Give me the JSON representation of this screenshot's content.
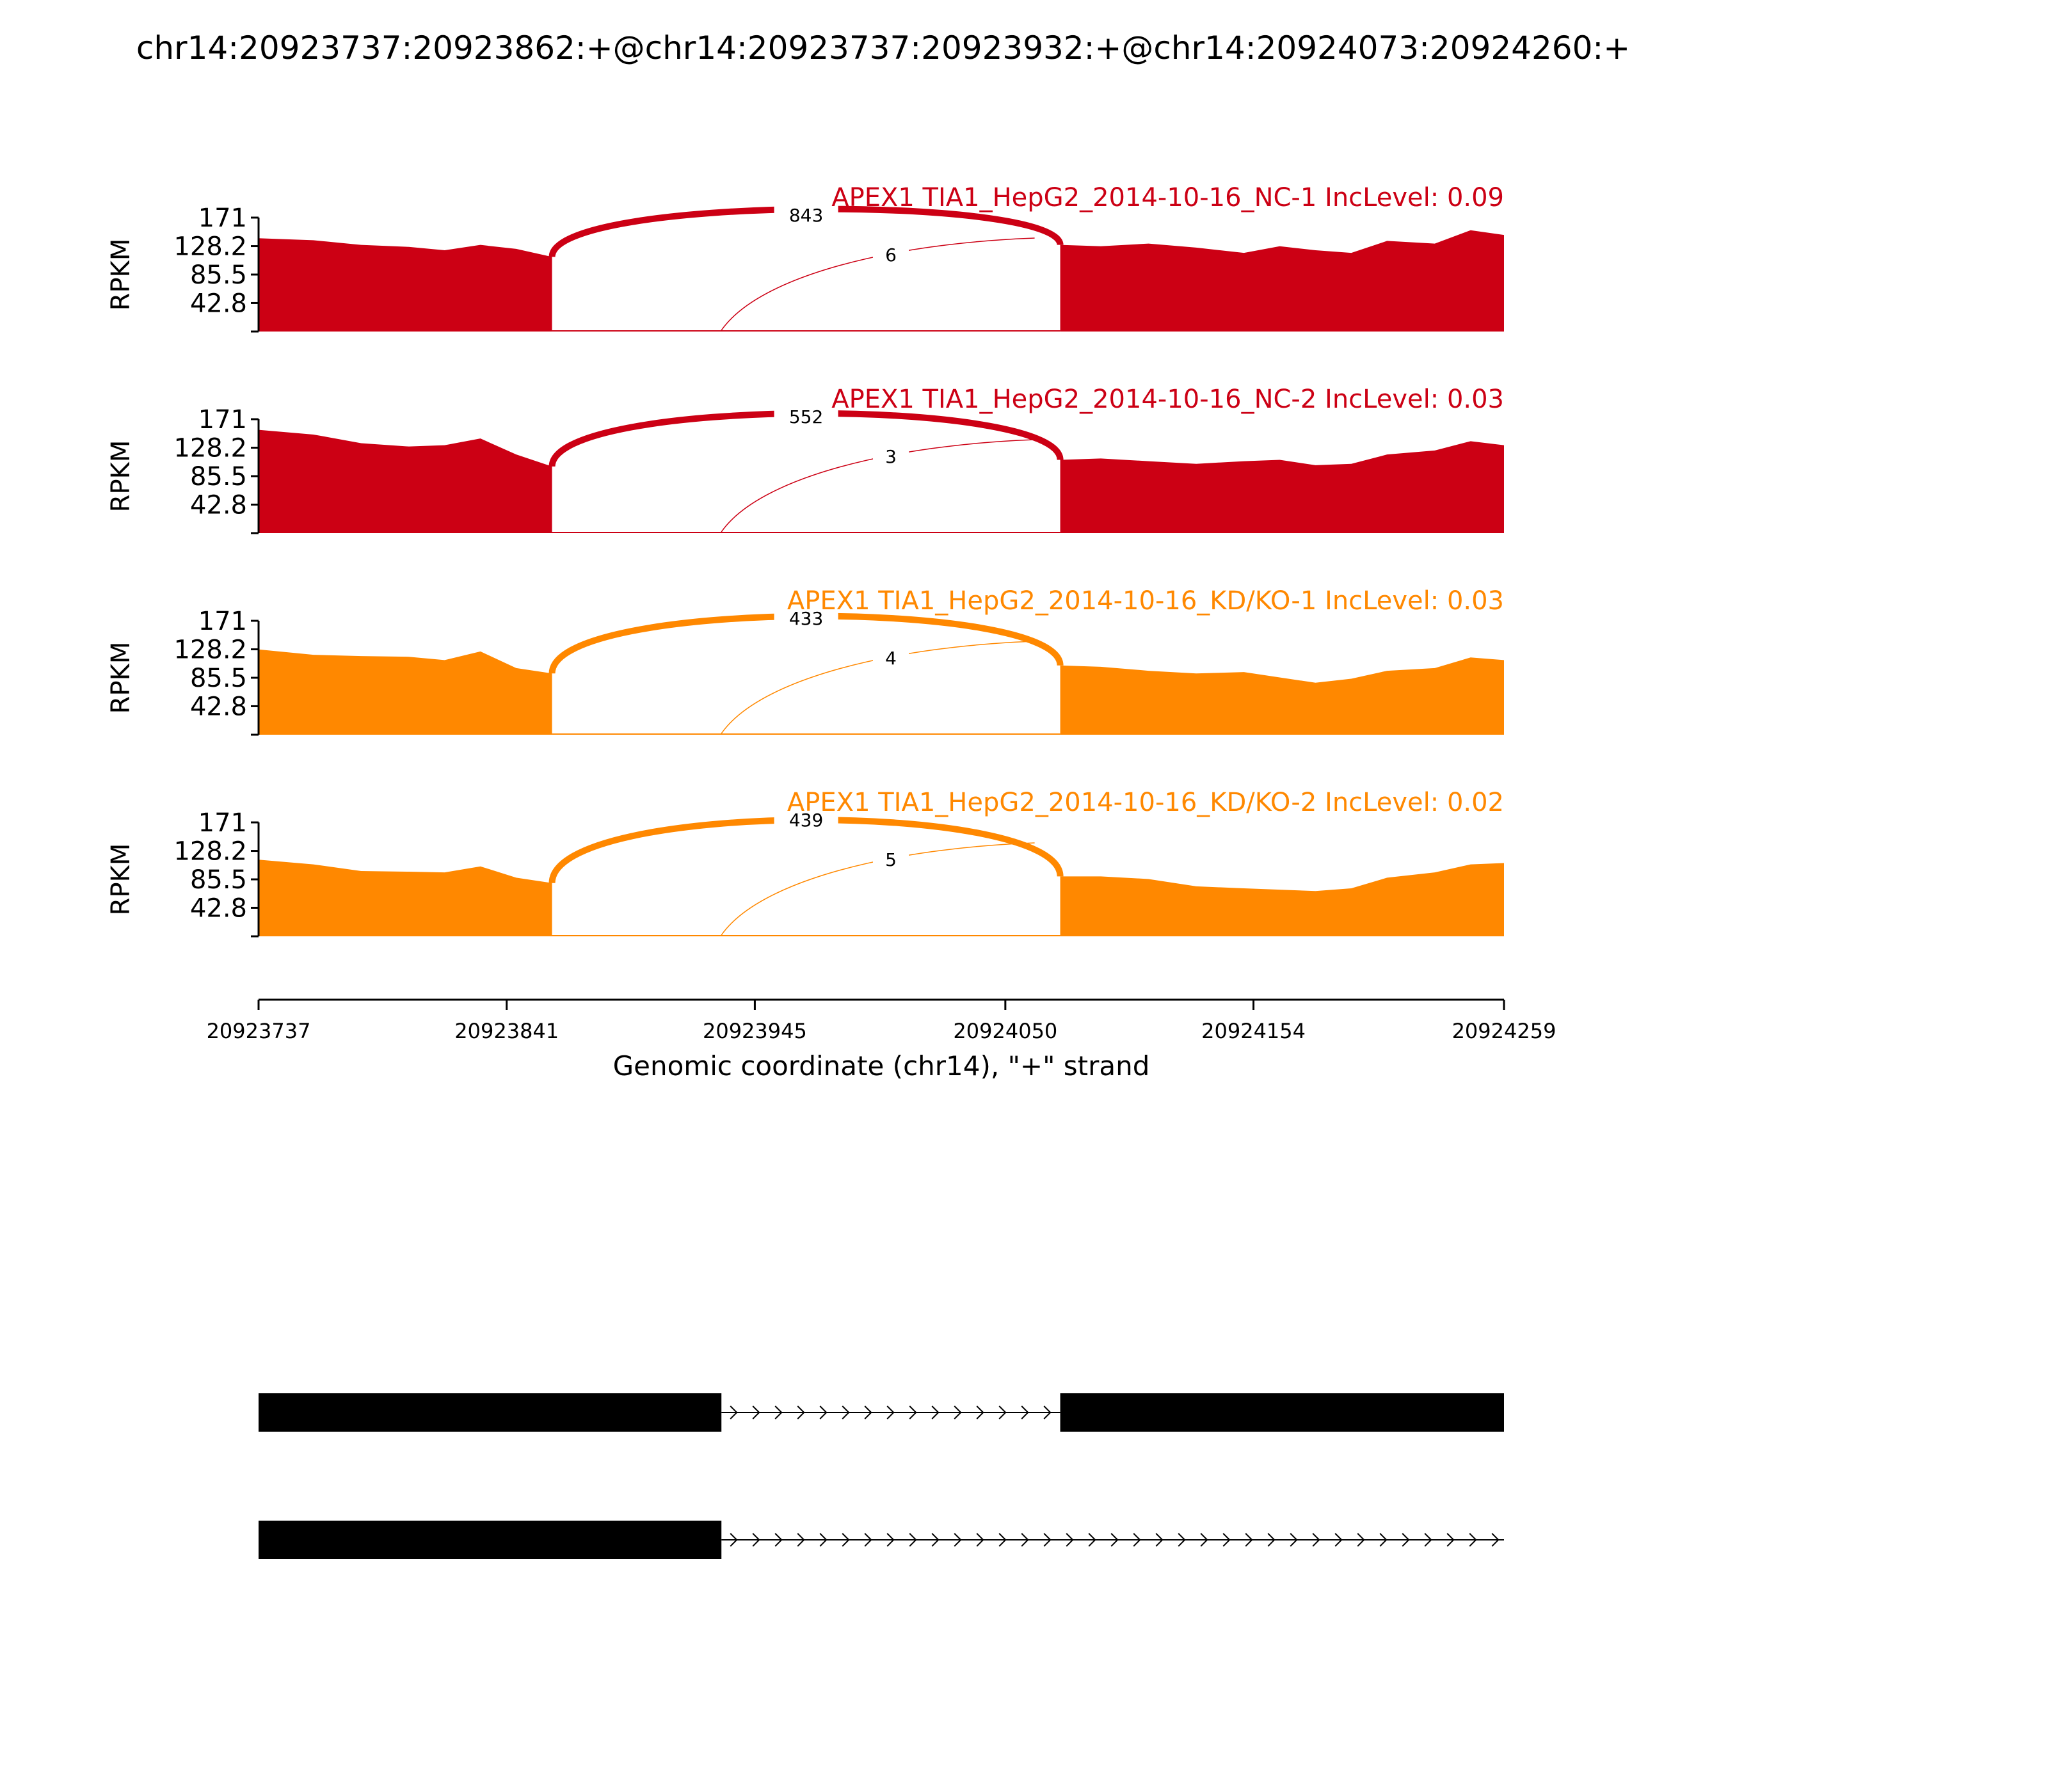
{
  "title": "chr14:20923737:20923862:+@chr14:20923737:20923932:+@chr14:20924073:20924260:+",
  "chart_data": {
    "type": "area",
    "chart_kind": "sashimi",
    "ylabel": "RPKM",
    "ylim": [
      0,
      171
    ],
    "yticks": [
      "42.8",
      "85.5",
      "128.2",
      "171"
    ],
    "xlabel": "Genomic coordinate (chr14), \"+\" strand",
    "xlim": [
      20923737,
      20924259
    ],
    "xticks": [
      "20923737",
      "20923841",
      "20923945",
      "20924050",
      "20924154",
      "20924259"
    ],
    "exons": [
      {
        "start": 20923737,
        "end": 20923860
      },
      {
        "start": 20924073,
        "end": 20924259
      }
    ],
    "junctions": [
      {
        "from": 20923860,
        "to": 20924073,
        "curve": "above"
      },
      {
        "from": 20923931,
        "to": 20924073,
        "curve": "below"
      }
    ],
    "coverage_x": [
      20923737,
      20923760,
      20923780,
      20923800,
      20923815,
      20923830,
      20923845,
      20923860,
      20924073,
      20924090,
      20924110,
      20924130,
      20924150,
      20924165,
      20924180,
      20924195,
      20924210,
      20924230,
      20924245,
      20924259
    ],
    "samples": [
      {
        "name": "APEX1 TIA1_HepG2_2014-10-16_NC-1 IncLevel: 0.09",
        "color": "#cc0014",
        "coverage": [
          140,
          137,
          130,
          127,
          122,
          130,
          124,
          112,
          130,
          128,
          132,
          126,
          118,
          128,
          122,
          118,
          136,
          132,
          152,
          145
        ],
        "junction_counts": [
          "843",
          "6"
        ]
      },
      {
        "name": "APEX1 TIA1_HepG2_2014-10-16_NC-2 IncLevel: 0.03",
        "color": "#cc0014",
        "coverage": [
          155,
          148,
          135,
          130,
          132,
          142,
          118,
          100,
          110,
          112,
          108,
          104,
          108,
          110,
          102,
          104,
          118,
          124,
          138,
          132
        ],
        "junction_counts": [
          "552",
          "3"
        ]
      },
      {
        "name": "APEX1 TIA1_HepG2_2014-10-16_KD/KO-1 IncLevel: 0.03",
        "color": "#ff8800",
        "coverage": [
          128,
          120,
          118,
          117,
          112,
          125,
          100,
          92,
          104,
          102,
          96,
          92,
          94,
          86,
          78,
          84,
          96,
          100,
          116,
          112
        ],
        "junction_counts": [
          "433",
          "4"
        ]
      },
      {
        "name": "APEX1 TIA1_HepG2_2014-10-16_KD/KO-2 IncLevel: 0.02",
        "color": "#ff8800",
        "coverage": [
          115,
          108,
          98,
          97,
          96,
          105,
          88,
          80,
          90,
          90,
          86,
          75,
          72,
          70,
          68,
          72,
          88,
          96,
          108,
          110
        ],
        "junction_counts": [
          "439",
          "5"
        ]
      }
    ],
    "isoforms": [
      {
        "exons": [
          [
            20923737,
            20923931
          ],
          [
            20924073,
            20924259
          ]
        ],
        "arrows_to": 20924073
      },
      {
        "exons": [
          [
            20923737,
            20923931
          ]
        ],
        "arrows_to": 20924259
      }
    ]
  }
}
